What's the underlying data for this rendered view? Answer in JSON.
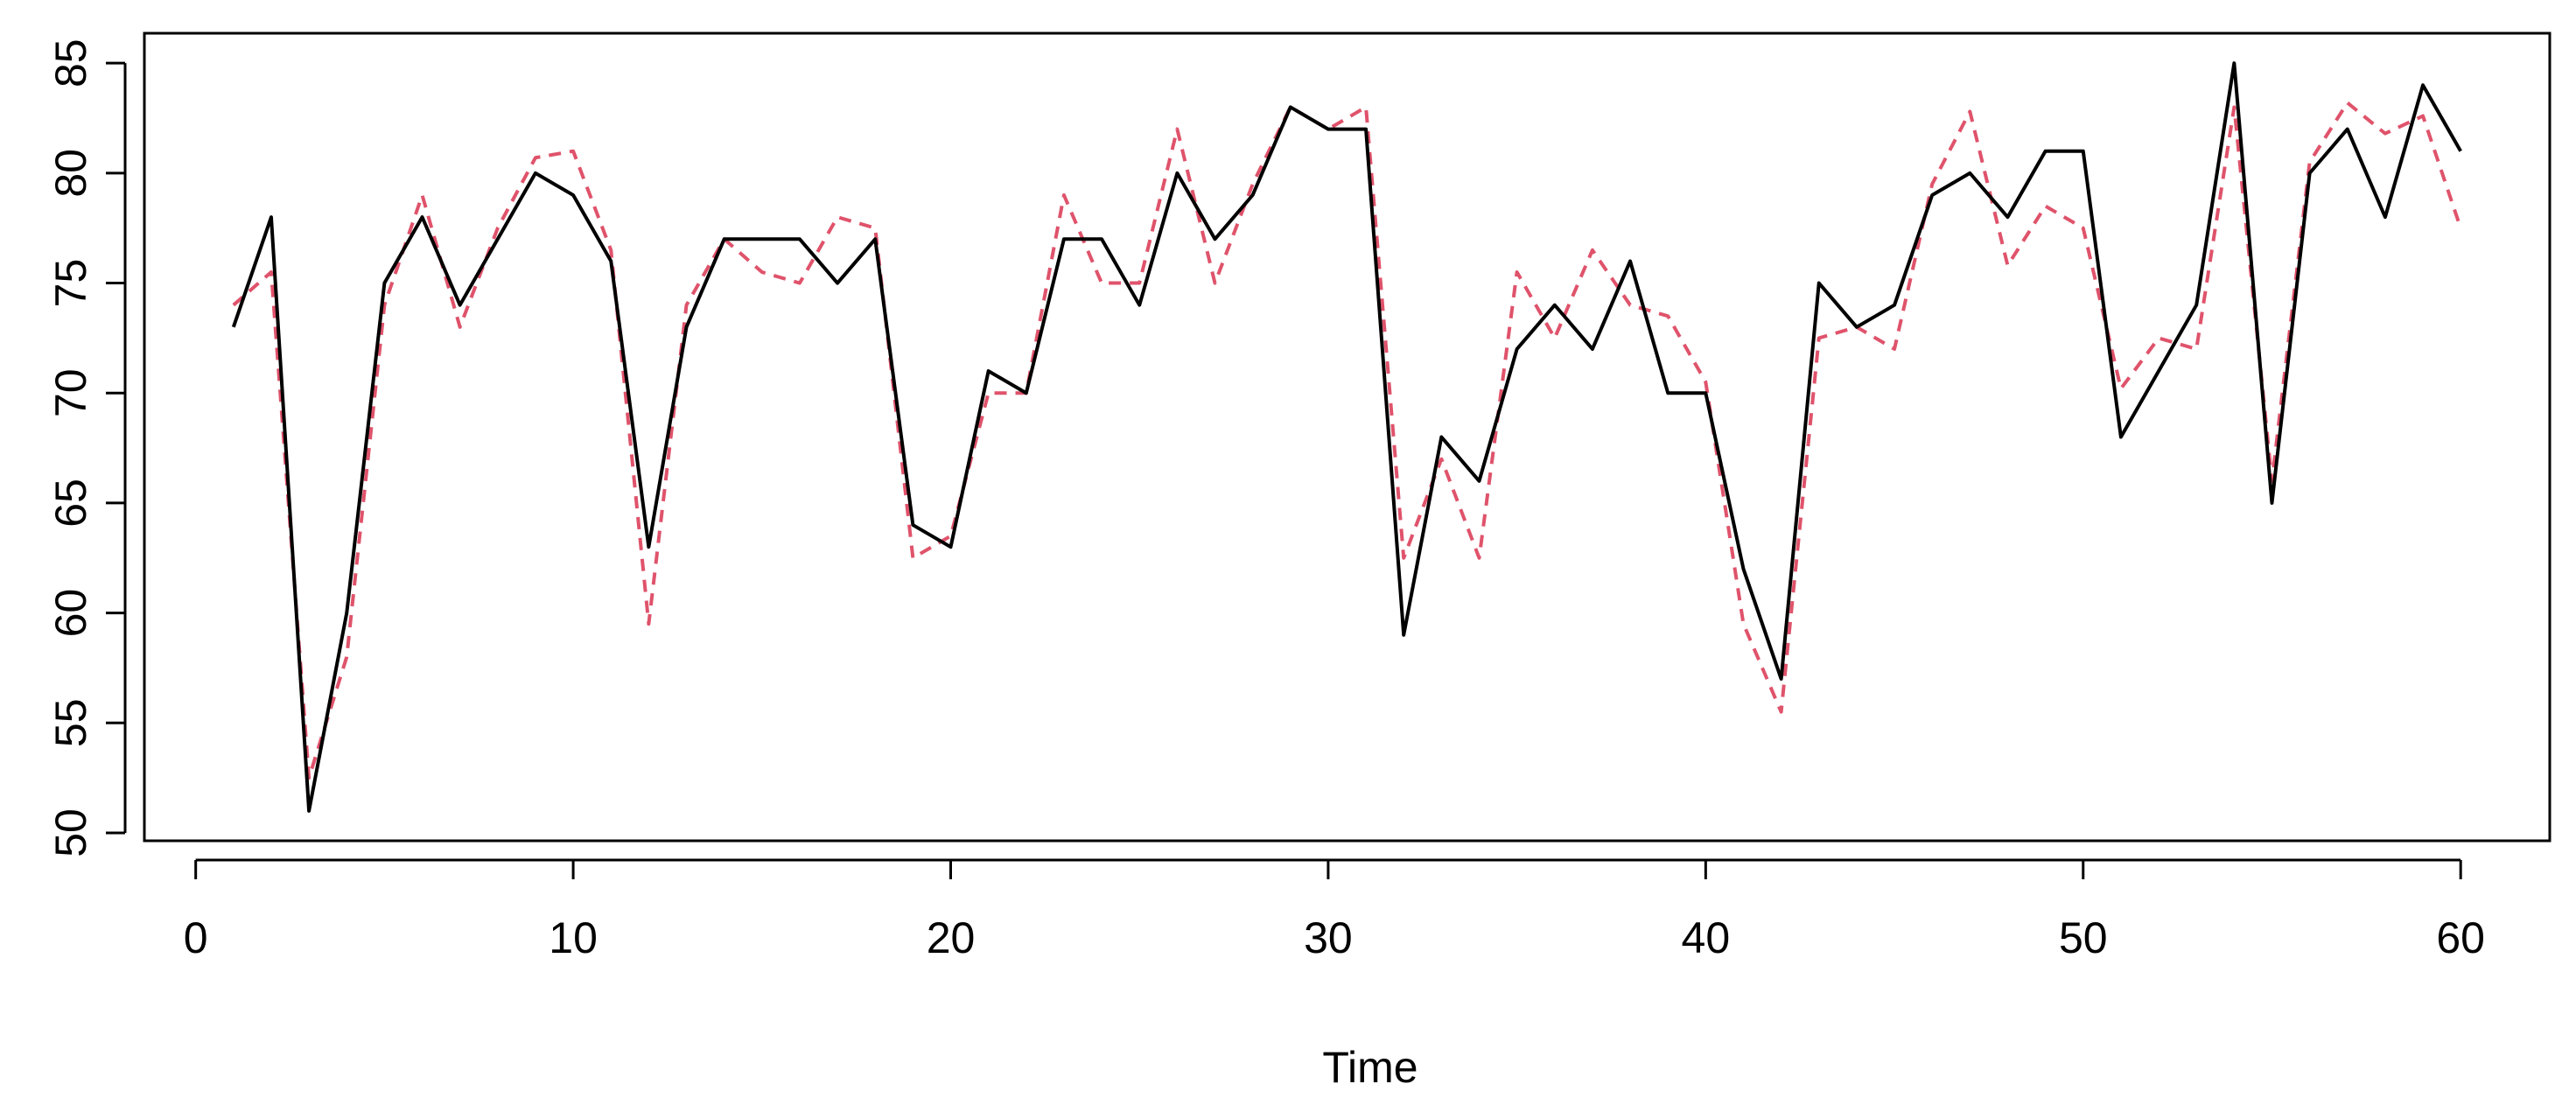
{
  "chart_data": {
    "type": "line",
    "xlabel": "Time",
    "x": [
      1,
      2,
      3,
      4,
      5,
      6,
      7,
      8,
      9,
      10,
      11,
      12,
      13,
      14,
      15,
      16,
      17,
      18,
      19,
      20,
      21,
      22,
      23,
      24,
      25,
      26,
      27,
      28,
      29,
      30,
      31,
      32,
      33,
      34,
      35,
      36,
      37,
      38,
      39,
      40,
      41,
      42,
      43,
      44,
      45,
      46,
      47,
      48,
      49,
      50,
      51,
      52,
      53,
      54,
      55,
      56,
      57,
      58,
      59,
      60
    ],
    "series": [
      {
        "color": "#000000",
        "linestyle": "solid",
        "values": [
          73,
          78,
          51,
          60,
          75,
          78,
          74,
          77,
          80,
          79,
          76,
          63,
          73,
          77,
          77,
          77,
          75,
          77,
          64,
          63,
          71,
          70,
          77,
          77,
          74,
          80,
          77,
          79,
          83,
          82,
          82,
          59,
          68,
          66,
          72,
          74,
          72,
          76,
          70,
          70,
          62,
          57,
          75,
          73,
          74,
          79,
          80,
          78,
          81,
          81,
          68,
          71,
          74,
          85,
          65,
          80,
          82,
          78,
          84,
          81
        ]
      },
      {
        "color": "#DF536B",
        "linestyle": "dashed",
        "values": [
          74,
          75.5,
          52.5,
          58,
          74,
          79,
          73,
          77.5,
          80.7,
          81,
          76.5,
          59.5,
          74,
          77,
          75.5,
          75,
          78,
          77.5,
          62.5,
          63.5,
          70,
          70,
          79,
          75,
          75,
          82,
          75,
          79.5,
          83,
          82,
          83,
          62.5,
          67,
          62.5,
          75.5,
          72.5,
          76.5,
          74,
          73.5,
          70.5,
          59.5,
          55.5,
          72.5,
          73,
          72,
          79.5,
          82.8,
          75.8,
          78.5,
          77.5,
          70.2,
          72.5,
          72,
          83,
          66,
          80.5,
          83.2,
          81.8,
          82.6,
          77.5
        ]
      }
    ],
    "xlim": [
      -1.36,
      62.36
    ],
    "ylim": [
      49.64,
      86.36
    ],
    "xticks": [
      0,
      10,
      20,
      30,
      40,
      50,
      60
    ],
    "yticks": [
      50,
      55,
      60,
      65,
      70,
      75,
      80,
      85
    ]
  }
}
